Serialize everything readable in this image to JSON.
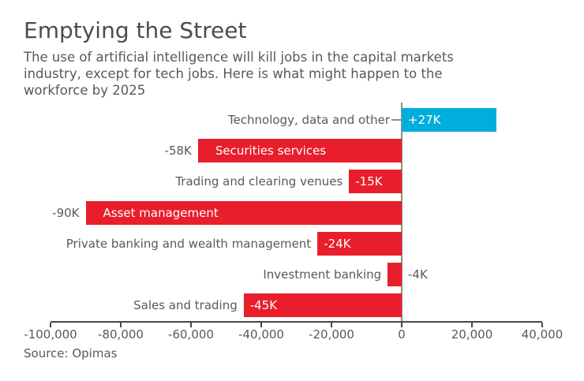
{
  "header": {
    "title": "Emptying the Street",
    "subtitle_lines": [
      "The use of artificial intelligence will kill jobs in the capital markets",
      "industry, except for tech jobs. Here is what might happen to the",
      "workforce by 2025"
    ]
  },
  "footer": {
    "source": "Source: Opimas"
  },
  "colors": {
    "positive_bar": "#00aedb",
    "negative_bar": "#e91e2c",
    "text_gray": "#595959",
    "axis": "#484848",
    "zero_line": "#8c8c8c",
    "inside_label": "#ffffff"
  },
  "chart_data": {
    "type": "bar",
    "orientation": "horizontal",
    "title": "Emptying the Street",
    "xlabel": "",
    "ylabel": "",
    "xlim": [
      -100000,
      40000
    ],
    "grid": false,
    "legend": false,
    "x_tick_values": [
      -100000,
      -80000,
      -60000,
      -40000,
      -20000,
      0,
      20000,
      40000
    ],
    "x_ticks": [
      "-100,000",
      "-80,000",
      "-60,000",
      "-40,000",
      "-20,000",
      "0",
      "20,000",
      "40,000"
    ],
    "rows": [
      {
        "category": "Technology, data and other",
        "value": 27000,
        "label": "+27K",
        "type": "positive",
        "name_inside": false,
        "value_inside": true,
        "value_outside_right": false,
        "leader_line": true
      },
      {
        "category": "Securities services",
        "value": -58000,
        "label": "-58K",
        "type": "negative",
        "name_inside": true,
        "value_inside": false,
        "value_outside_right": false,
        "leader_line": false
      },
      {
        "category": "Trading and clearing venues",
        "value": -15000,
        "label": "-15K",
        "type": "negative",
        "name_inside": false,
        "value_inside": true,
        "value_outside_right": false,
        "leader_line": false
      },
      {
        "category": "Asset management",
        "value": -90000,
        "label": "-90K",
        "type": "negative",
        "name_inside": true,
        "value_inside": false,
        "value_outside_right": false,
        "leader_line": false
      },
      {
        "category": "Private banking and wealth management",
        "value": -24000,
        "label": "-24K",
        "type": "negative",
        "name_inside": false,
        "value_inside": true,
        "value_outside_right": false,
        "leader_line": false
      },
      {
        "category": "Investment banking",
        "value": -4000,
        "label": "-4K",
        "type": "negative",
        "name_inside": false,
        "value_inside": false,
        "value_outside_right": true,
        "leader_line": false
      },
      {
        "category": "Sales and trading",
        "value": -45000,
        "label": "-45K",
        "type": "negative",
        "name_inside": false,
        "value_inside": true,
        "value_outside_right": false,
        "leader_line": false
      }
    ]
  }
}
